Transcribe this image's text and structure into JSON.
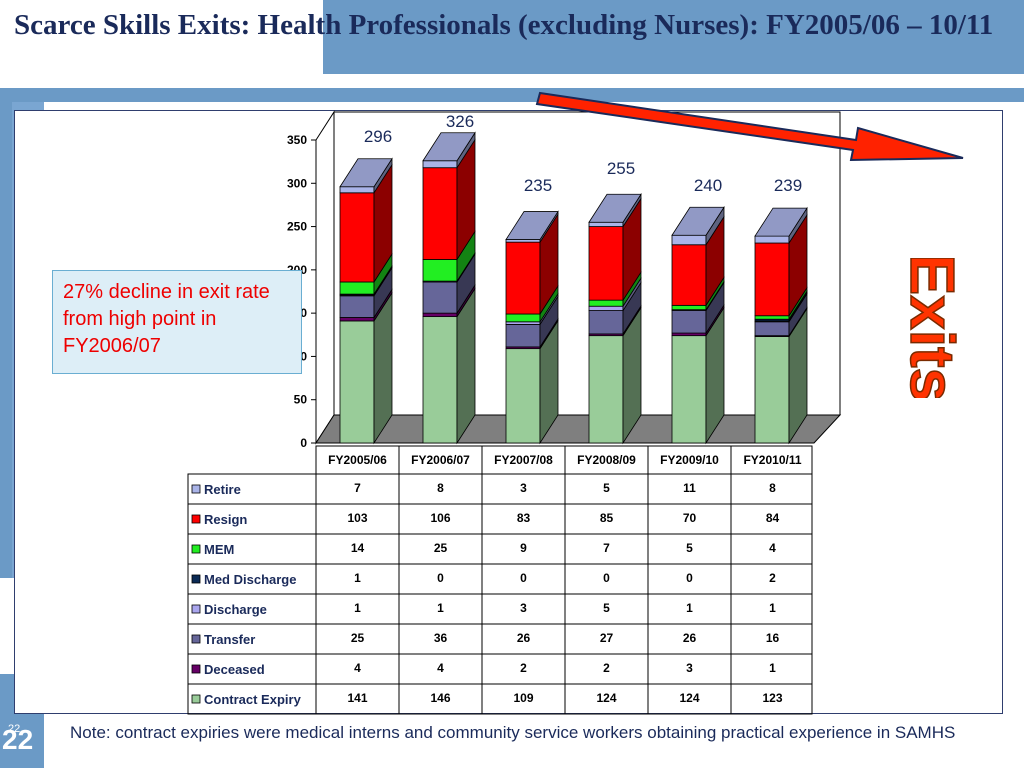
{
  "slide": {
    "title": "Scarce Skills Exits: Health Professionals (excluding Nurses): FY2005/06 – 10/11",
    "note": "Note:  contract expiries were medical interns and community service workers obtaining practical experience in SAMHS",
    "callout": "27% decline in exit rate from high point in FY2006/07",
    "exits_label": "Exits",
    "page_number": "22",
    "page_number_small": "22"
  },
  "colors": {
    "band": "#6b9ac6",
    "title": "#1a2a5a",
    "arrow": "#ff2200",
    "exits_text": "#ff3300"
  },
  "chart_data": {
    "type": "bar",
    "stacked": true,
    "three_d": true,
    "categories": [
      "FY2005/06",
      "FY2006/07",
      "FY2007/08",
      "FY2008/09",
      "FY2009/10",
      "FY2010/11"
    ],
    "totals": [
      "296",
      "326",
      "235",
      "255",
      "240",
      "239"
    ],
    "ylim": [
      0,
      350
    ],
    "yticks": [
      0,
      50,
      100,
      150,
      200,
      250,
      300,
      350
    ],
    "series": [
      {
        "name": "Contract Expiry",
        "color": "#99cc99",
        "values": [
          141,
          146,
          109,
          124,
          124,
          123
        ]
      },
      {
        "name": "Deceased",
        "color": "#660066",
        "values": [
          4,
          4,
          2,
          2,
          3,
          1
        ]
      },
      {
        "name": "Transfer",
        "color": "#666699",
        "values": [
          25,
          36,
          26,
          27,
          26,
          16
        ]
      },
      {
        "name": "Discharge",
        "color": "#aaa6ee",
        "values": [
          1,
          1,
          3,
          5,
          1,
          1
        ]
      },
      {
        "name": "Med Discharge",
        "color": "#0b2a55",
        "values": [
          1,
          0,
          0,
          0,
          0,
          2
        ]
      },
      {
        "name": "MEM",
        "color": "#22ee22",
        "values": [
          14,
          25,
          9,
          7,
          5,
          4
        ]
      },
      {
        "name": "Resign",
        "color": "#ff0000",
        "values": [
          103,
          106,
          83,
          85,
          70,
          84
        ]
      },
      {
        "name": "Retire",
        "color": "#aab4e8",
        "values": [
          7,
          8,
          3,
          5,
          11,
          8
        ]
      }
    ],
    "table_row_order": [
      "Retire",
      "Resign",
      "MEM",
      "Med Discharge",
      "Discharge",
      "Transfer",
      "Deceased",
      "Contract Expiry"
    ],
    "grid": false,
    "legend": "table below chart"
  }
}
